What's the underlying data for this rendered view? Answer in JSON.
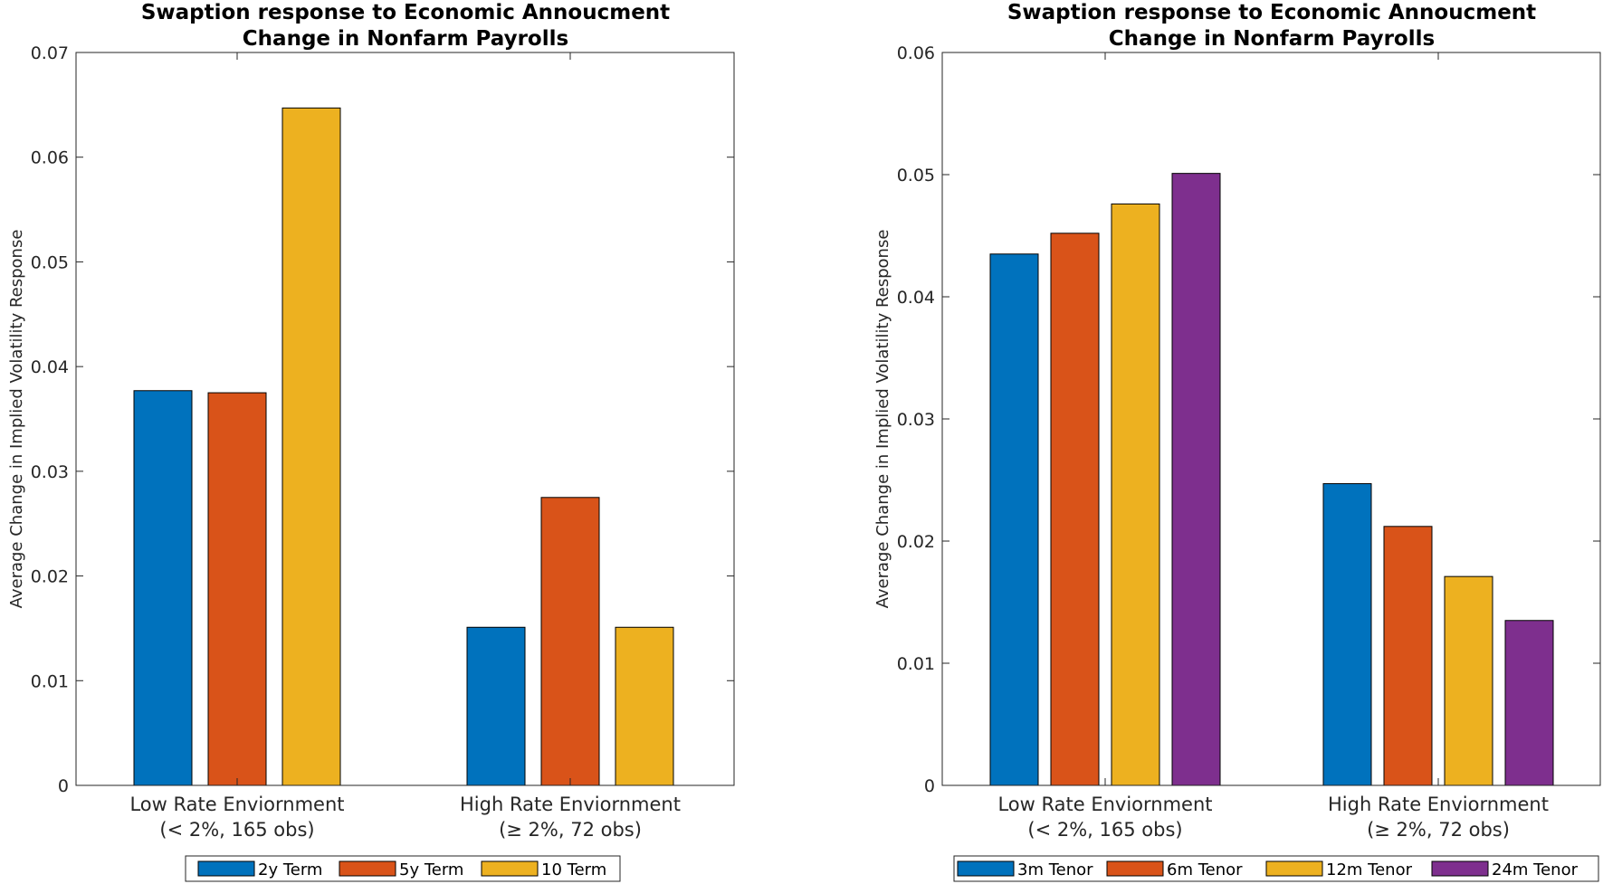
{
  "chart_data": [
    {
      "type": "bar",
      "title": [
        "Swaption response to Economic Annoucment",
        "Change in Nonfarm Payrolls"
      ],
      "ylabel": "Average Change in Implied Volatility Response",
      "xlabel": "",
      "ylim": [
        0,
        0.07
      ],
      "yticks": [
        "0",
        "0.01",
        "0.02",
        "0.03",
        "0.04",
        "0.05",
        "0.06",
        "0.07"
      ],
      "categories": [
        [
          "Low Rate Enviornment",
          "(< 2%, 165 obs)"
        ],
        [
          "High Rate Enviornment",
          "(≥ 2%, 72 obs)"
        ]
      ],
      "series": [
        {
          "name": "2y Term",
          "color": "#0072BD",
          "values": [
            0.0377,
            0.0151
          ]
        },
        {
          "name": "5y Term",
          "color": "#D95319",
          "values": [
            0.0375,
            0.0275
          ]
        },
        {
          "name": "10 Term",
          "color": "#EDB120",
          "values": [
            0.0647,
            0.0151
          ]
        }
      ],
      "legend": "bottom-outside"
    },
    {
      "type": "bar",
      "title": [
        "Swaption response to Economic Annoucment",
        "Change in Nonfarm Payrolls"
      ],
      "ylabel": "Average Change in Implied Volatility Response",
      "xlabel": "",
      "ylim": [
        0,
        0.06
      ],
      "yticks": [
        "0",
        "0.01",
        "0.02",
        "0.03",
        "0.04",
        "0.05",
        "0.06"
      ],
      "categories": [
        [
          "Low Rate Enviornment",
          "(< 2%, 165 obs)"
        ],
        [
          "High Rate Enviornment",
          "(≥ 2%, 72 obs)"
        ]
      ],
      "series": [
        {
          "name": "3m Tenor",
          "color": "#0072BD",
          "values": [
            0.0435,
            0.0247
          ]
        },
        {
          "name": "6m Tenor",
          "color": "#D95319",
          "values": [
            0.0452,
            0.0212
          ]
        },
        {
          "name": "12m Tenor",
          "color": "#EDB120",
          "values": [
            0.0476,
            0.0171
          ]
        },
        {
          "name": "24m Tenor",
          "color": "#7E2F8E",
          "values": [
            0.0501,
            0.0135
          ]
        }
      ],
      "legend": "bottom-outside"
    }
  ]
}
